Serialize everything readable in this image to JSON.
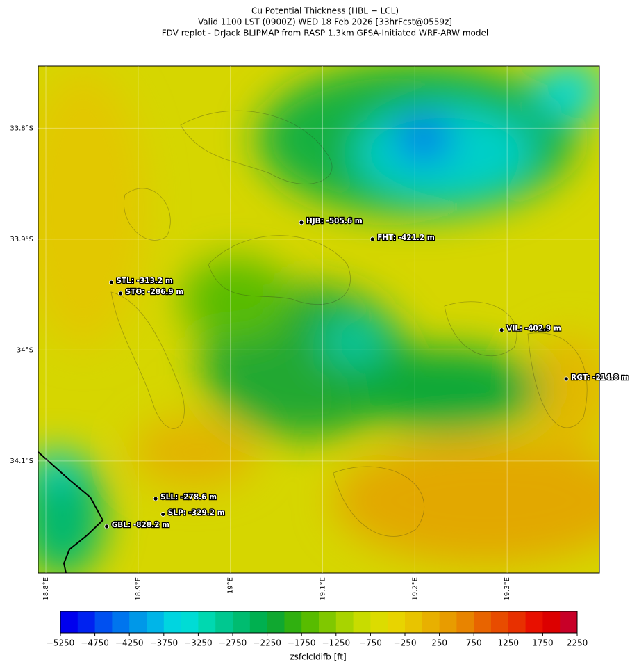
{
  "header": {
    "title": "Cu Potential Thickness (HBL − LCL)",
    "subtitle": "Valid 1100 LST (0900Z) WED 18 Feb 2026 [33hrFcst@0559z]",
    "source": "FDV replot - DrJack BLIPMAP from RASP 1.3km GFSA-Initiated WRF-ARW model"
  },
  "map": {
    "xlim": [
      18.7917,
      19.4
    ],
    "ylim": [
      -34.201,
      -33.744
    ],
    "xticks": [
      {
        "value": 18.8,
        "label": "18.8°E"
      },
      {
        "value": 18.9,
        "label": "18.9°E"
      },
      {
        "value": 19.0,
        "label": "19°E"
      },
      {
        "value": 19.1,
        "label": "19.1°E"
      },
      {
        "value": 19.2,
        "label": "19.2°E"
      },
      {
        "value": 19.3,
        "label": "19.3°E"
      }
    ],
    "yticks": [
      {
        "value": -33.8,
        "label": "33.8°S"
      },
      {
        "value": -33.9,
        "label": "33.9°S"
      },
      {
        "value": -34.0,
        "label": "34°S"
      },
      {
        "value": -34.1,
        "label": "34.1°S"
      }
    ],
    "grid": true,
    "stations": [
      {
        "label": "HJB: -505.6 m",
        "lon": 19.077,
        "lat": -33.885
      },
      {
        "label": "FHT: -421.2 m",
        "lon": 19.154,
        "lat": -33.9
      },
      {
        "label": "STL: -313.2 m",
        "lon": 18.871,
        "lat": -33.939
      },
      {
        "label": "STO: -286.9 m",
        "lon": 18.881,
        "lat": -33.949
      },
      {
        "label": "VIL: -402.9 m",
        "lon": 19.294,
        "lat": -33.982
      },
      {
        "label": "RGT: -214.8 m",
        "lon": 19.364,
        "lat": -34.026
      },
      {
        "label": "SLL: -278.6 m",
        "lon": 18.919,
        "lat": -34.134
      },
      {
        "label": "SLP: -329.2 m",
        "lon": 18.927,
        "lat": -34.148
      },
      {
        "label": "GBL: -828.2 m",
        "lon": 18.866,
        "lat": -34.159
      }
    ]
  },
  "colorbar": {
    "label": "zsfclcldifb [ft]",
    "lim": [
      -5250,
      2250
    ],
    "ticks": [
      {
        "value": -5250,
        "label": "−5250"
      },
      {
        "value": -4750,
        "label": "−4750"
      },
      {
        "value": -4250,
        "label": "−4250"
      },
      {
        "value": -3750,
        "label": "−3750"
      },
      {
        "value": -3250,
        "label": "−3250"
      },
      {
        "value": -2750,
        "label": "−2750"
      },
      {
        "value": -2250,
        "label": "−2250"
      },
      {
        "value": -1750,
        "label": "−1750"
      },
      {
        "value": -1250,
        "label": "−1250"
      },
      {
        "value": -750,
        "label": "−750"
      },
      {
        "value": -250,
        "label": "−250"
      },
      250,
      750,
      1250,
      1750,
      2250
    ],
    "colors": [
      "#0000ee",
      "#0022f0",
      "#0050f0",
      "#0075ee",
      "#0098e8",
      "#00b5e8",
      "#00d5e0",
      "#00dcd5",
      "#00d8b0",
      "#00c890",
      "#00bc70",
      "#00b050",
      "#10a830",
      "#30b010",
      "#58bc00",
      "#80c800",
      "#a8d400",
      "#c8dc00",
      "#dcdc00",
      "#e8d400",
      "#e8c400",
      "#e8b000",
      "#e89c00",
      "#e88400",
      "#e86400",
      "#e84c00",
      "#e83000",
      "#e81000",
      "#dc0000",
      "#c80028"
    ]
  }
}
